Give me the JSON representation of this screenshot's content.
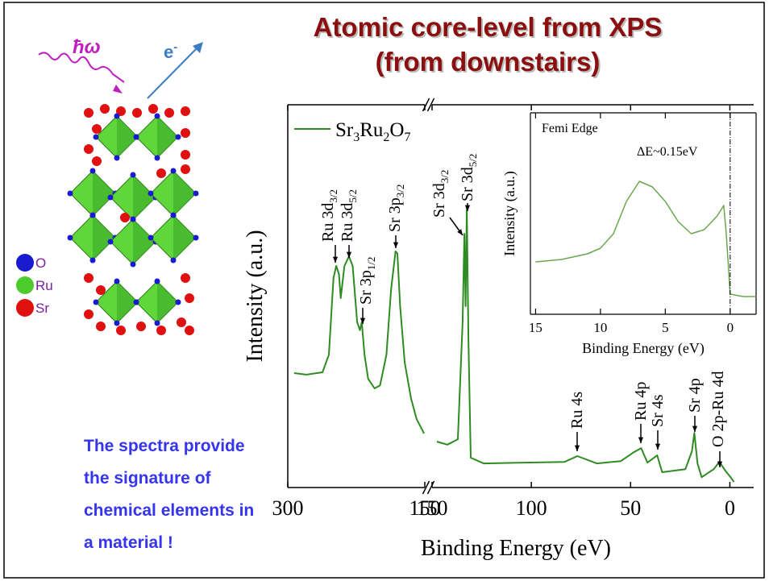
{
  "title_lines": [
    "Atomic core-level from XPS",
    "(from downstairs)"
  ],
  "photon": "ħω",
  "electron": {
    "main": "e",
    "sup": "-"
  },
  "structure_legend": [
    "O",
    "Ru",
    "Sr"
  ],
  "note_lines": [
    "The spectra provide",
    "the signature of",
    "chemical elements in",
    "a material !"
  ],
  "chart_data": [
    {
      "type": "line",
      "xlabel": "Binding Energy (eV)",
      "ylabel": "Intensity (a.u.)",
      "segments": [
        {
          "xlim": [
            300,
            150
          ],
          "xticks": [
            300,
            150
          ]
        },
        {
          "xlim": [
            150,
            -12
          ],
          "xticks": [
            150,
            100,
            50,
            0
          ]
        }
      ],
      "ylim": [
        0,
        100
      ],
      "series": [
        {
          "name": "Sr3Ru2O7",
          "color": "#2e8b22",
          "x": [
            293,
            280,
            262,
            255,
            250,
            247,
            244,
            242,
            238,
            233,
            229,
            224,
            221,
            219,
            216,
            212,
            205,
            199,
            192,
            187,
            182,
            180,
            177,
            172,
            165,
            159,
            152,
            151,
            147.6,
            142.3,
            137,
            134.6,
            133.7,
            133.1,
            132.5,
            131.7,
            130.5,
            124,
            103.7,
            83.3,
            76.8,
            67,
            54.9,
            48.8,
            44.7,
            41.5,
            36.6,
            34.1,
            22.4,
            19.1,
            17.9,
            16.3,
            14.2,
            8.1,
            5.3,
            2,
            -0.4,
            -2,
            -12.2
          ],
          "values": [
            29.9,
            29.5,
            30.1,
            34.7,
            54.7,
            57.9,
            55.8,
            49.5,
            57.9,
            60.4,
            57.9,
            43.2,
            41.1,
            43.2,
            34.7,
            28.4,
            25.9,
            26.7,
            34.7,
            51.6,
            61.7,
            61.1,
            47.4,
            32.6,
            23.2,
            17.9,
            14.7,
            14.1,
            12.0,
            11.2,
            12.6,
            43.2,
            66.3,
            47.4,
            73.1,
            38.9,
            7.8,
            6.3,
            6.5,
            6.7,
            8.2,
            6.3,
            6.9,
            9.1,
            10.3,
            6.5,
            8.4,
            4.0,
            4.8,
            9.5,
            14.3,
            6.3,
            2.7,
            4.8,
            6.7,
            4.2,
            2.7,
            1.5,
            1.5
          ]
        }
      ],
      "annotations": [
        {
          "main": "Ru 3d",
          "sub": "3/2"
        },
        {
          "main": "Ru 3d",
          "sub": "5/2"
        },
        {
          "main": "Sr 3p",
          "sub": "1/2"
        },
        {
          "main": "Sr 3p",
          "sub": "3/2"
        },
        {
          "main": "Sr 3d",
          "sub": "3/2"
        },
        {
          "main": "Sr 3d",
          "sub": "5/2"
        },
        {
          "main": "Ru 4s"
        },
        {
          "main": "Ru 4p"
        },
        {
          "main": "Sr 4s"
        },
        {
          "main": "Sr 4p"
        },
        {
          "main": "O 2p-Ru 4d"
        }
      ]
    },
    {
      "type": "line",
      "title": "Femi Edge",
      "annotation": "ΔE~0.15eV",
      "xlabel": "Binding Energy (eV)",
      "ylabel": "Intensity (a.u.)",
      "xlim": [
        15.4,
        -2
      ],
      "xticks": [
        15,
        10,
        5,
        0
      ],
      "ylim": [
        0,
        100
      ],
      "series": [
        {
          "color": "#6aa84f",
          "x": [
            15,
            13,
            11,
            10,
            9,
            8,
            7,
            6,
            5,
            4,
            3,
            2,
            1,
            0.5,
            0.3,
            0,
            -1,
            -2
          ],
          "values": [
            26,
            27.2,
            30,
            32.8,
            40,
            56,
            66,
            63.2,
            56,
            46,
            40,
            42,
            48.8,
            54,
            40,
            10,
            8.8,
            8.8
          ]
        }
      ]
    }
  ]
}
